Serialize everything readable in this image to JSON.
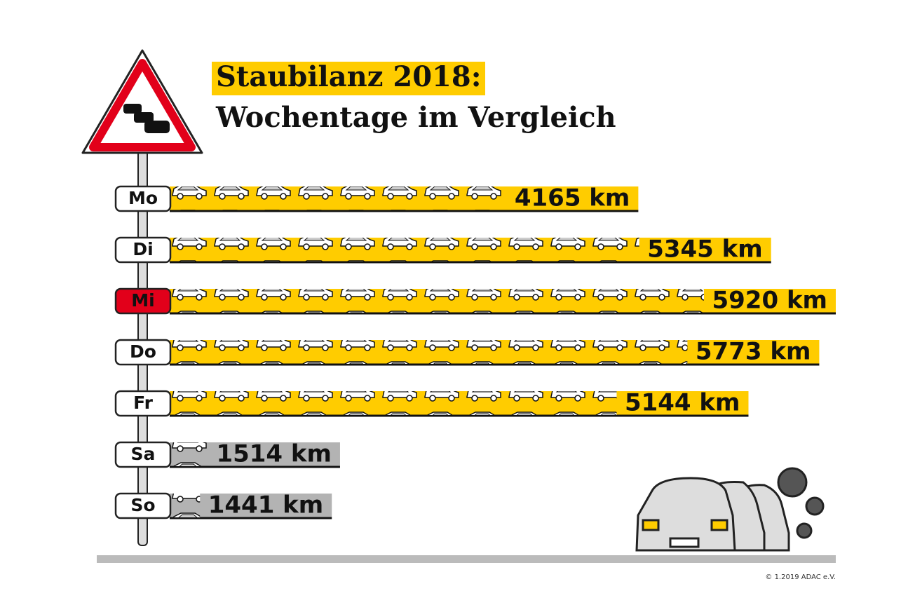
{
  "chart_data": {
    "type": "bar",
    "orientation": "horizontal",
    "title": "Staubilanz 2018:",
    "subtitle": "Wochentage im Vergleich",
    "categories": [
      "Mo",
      "Di",
      "Mi",
      "Do",
      "Fr",
      "Sa",
      "So"
    ],
    "values": [
      4165,
      5345,
      5920,
      5773,
      5144,
      1514,
      1441
    ],
    "value_labels": [
      "4165 km",
      "5345 km",
      "5920 km",
      "5773 km",
      "5144 km",
      "1514 km",
      "1441 km"
    ],
    "colors": [
      "#ffcc00",
      "#ffcc00",
      "#ffcc00",
      "#ffcc00",
      "#ffcc00",
      "#b3b3b3",
      "#b3b3b3"
    ],
    "label_fills": [
      "#ffffff",
      "#ffffff",
      "#e2001a",
      "#ffffff",
      "#ffffff",
      "#ffffff",
      "#ffffff"
    ],
    "copyright": "© 1.2019 ADAC e.V."
  }
}
